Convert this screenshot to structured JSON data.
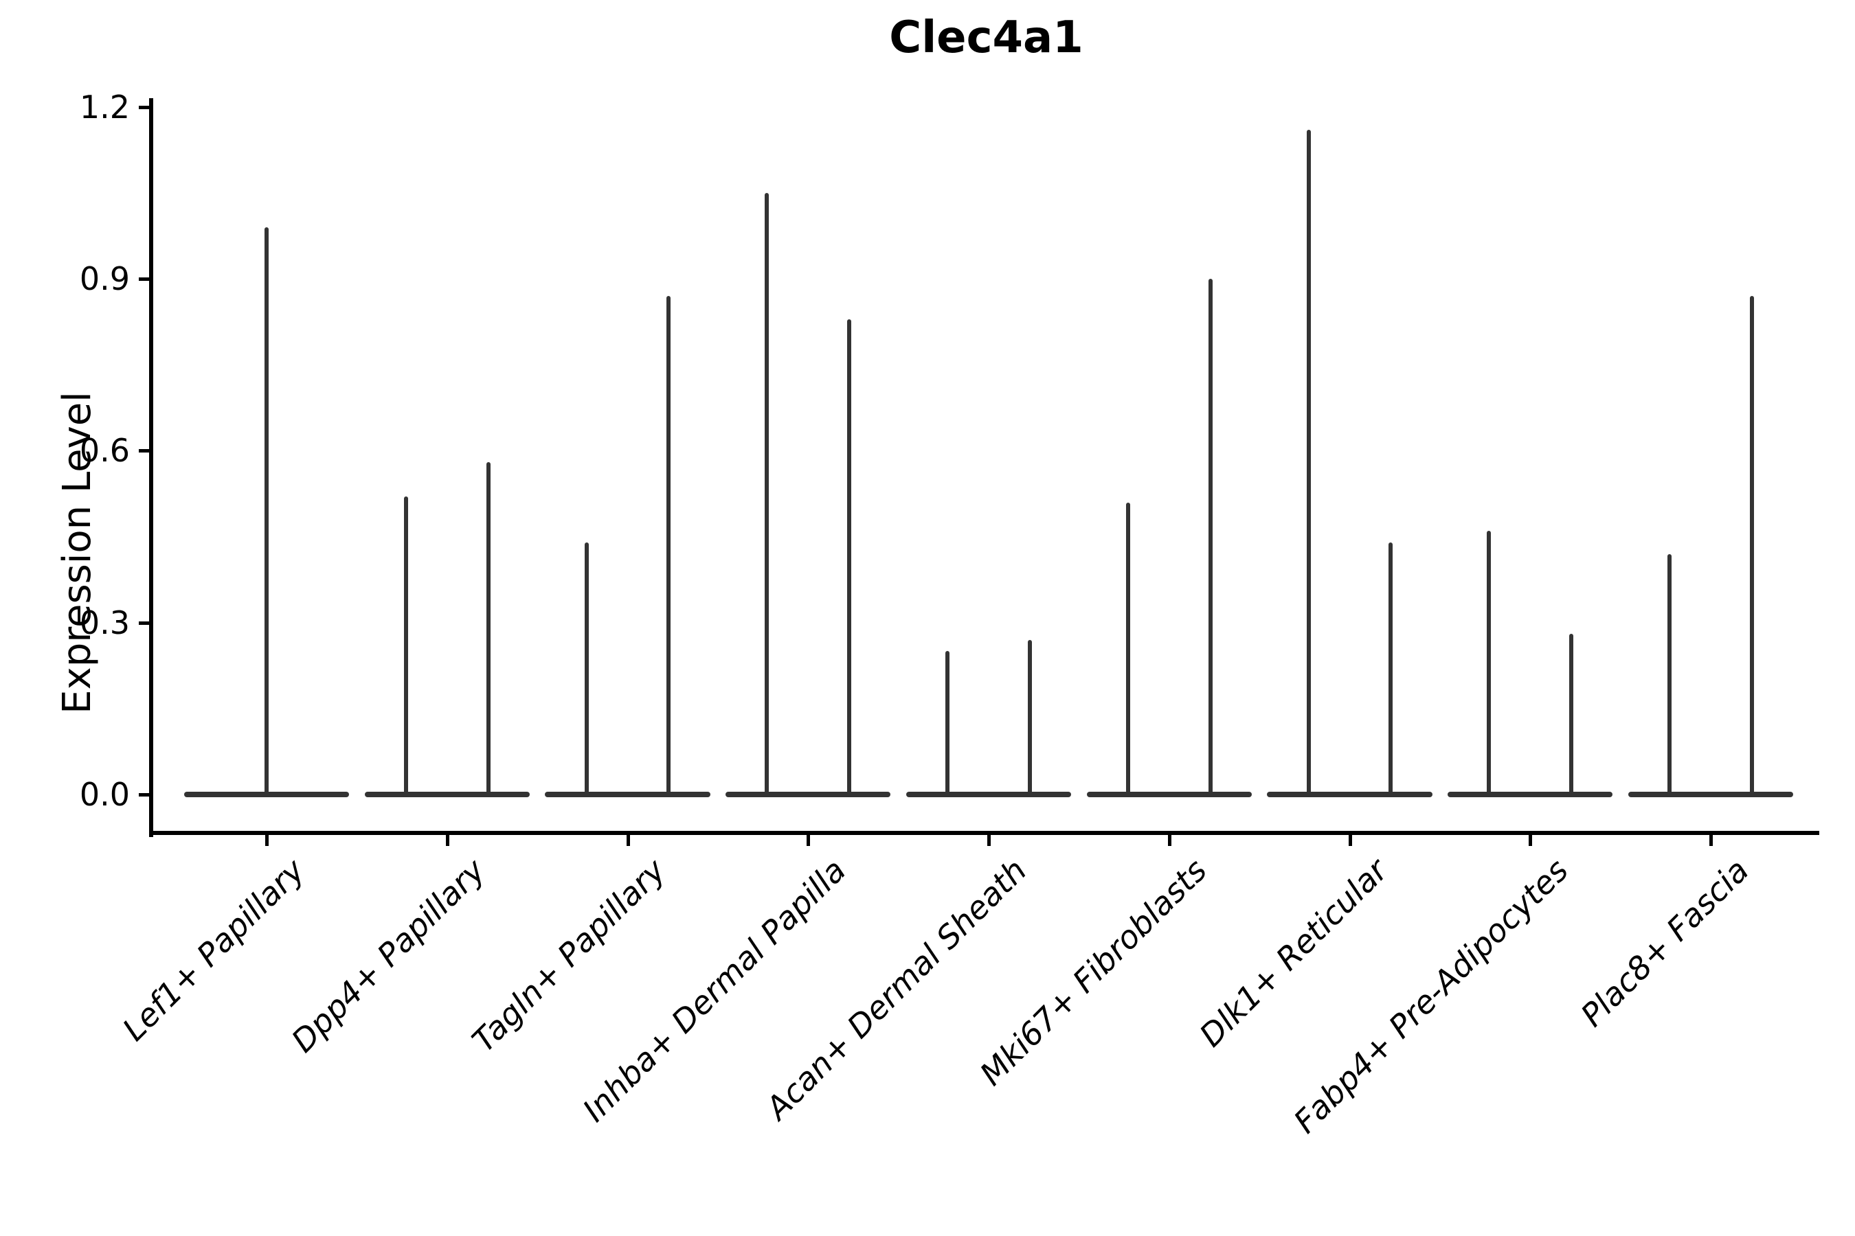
{
  "chart_data": {
    "type": "violin",
    "title": "Clec4a1",
    "ylabel": "Expression Level",
    "xlabel": "",
    "grid": false,
    "legend": null,
    "ylim": [
      -0.07,
      1.23
    ],
    "yticks": [
      "0.0",
      "0.3",
      "0.6",
      "0.9",
      "1.2"
    ],
    "categories": [
      "Lef1+ Papillary",
      "Dpp4+ Papillary",
      "Tagln+ Papillary",
      "Inhba+ Dermal Papilla",
      "Acan+ Dermal Sheath",
      "Mki67+ Fibroblasts",
      "Dlk1+ Reticular",
      "Fabp4+ Pre-Adipocytes",
      "Plac8+ Fascia"
    ],
    "series": [
      {
        "category": "Lef1+ Papillary",
        "base_half_width": 0.457,
        "spikes": [
          {
            "offset": 0.0,
            "max": 0.99
          }
        ]
      },
      {
        "category": "Dpp4+ Papillary",
        "base_half_width": 0.457,
        "spikes": [
          {
            "offset": -0.228,
            "max": 0.52
          },
          {
            "offset": 0.228,
            "max": 0.58
          }
        ]
      },
      {
        "category": "Tagln+ Papillary",
        "base_half_width": 0.457,
        "spikes": [
          {
            "offset": -0.228,
            "max": 0.44
          },
          {
            "offset": 0.228,
            "max": 0.87
          }
        ]
      },
      {
        "category": "Inhba+ Dermal Papilla",
        "base_half_width": 0.457,
        "spikes": [
          {
            "offset": -0.228,
            "max": 1.05
          },
          {
            "offset": 0.228,
            "max": 0.83
          }
        ]
      },
      {
        "category": "Acan+ Dermal Sheath",
        "base_half_width": 0.457,
        "spikes": [
          {
            "offset": -0.228,
            "max": 0.25
          },
          {
            "offset": 0.228,
            "max": 0.27
          }
        ]
      },
      {
        "category": "Mki67+ Fibroblasts",
        "base_half_width": 0.457,
        "spikes": [
          {
            "offset": -0.228,
            "max": 0.51
          },
          {
            "offset": 0.228,
            "max": 0.9
          }
        ]
      },
      {
        "category": "Dlk1+ Reticular",
        "base_half_width": 0.457,
        "spikes": [
          {
            "offset": -0.228,
            "max": 1.16
          },
          {
            "offset": 0.228,
            "max": 0.44
          }
        ]
      },
      {
        "category": "Fabp4+ Pre-Adipocytes",
        "base_half_width": 0.457,
        "spikes": [
          {
            "offset": -0.228,
            "max": 0.46
          },
          {
            "offset": 0.228,
            "max": 0.28
          }
        ]
      },
      {
        "category": "Plac8+ Fascia",
        "base_half_width": 0.457,
        "spikes": [
          {
            "offset": -0.228,
            "max": 0.42
          },
          {
            "offset": 0.228,
            "max": 0.87
          }
        ]
      }
    ],
    "colors": {
      "violin": "#333333",
      "axis": "#000000",
      "text": "#000000",
      "background": "#ffffff"
    }
  }
}
